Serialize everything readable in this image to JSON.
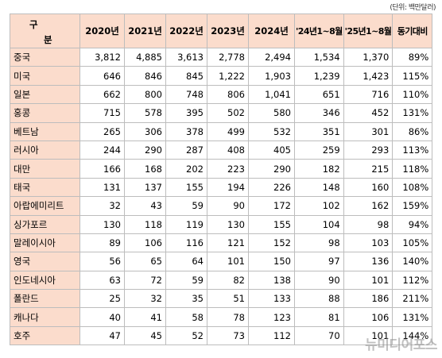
{
  "unit_note": "(단위: 백만달러)",
  "header": {
    "corner_top": "구",
    "corner_bottom": "분",
    "columns": [
      "2020년",
      "2021년",
      "2022년",
      "2023년",
      "2024년",
      "'24년1~8월",
      "'25년1~8월",
      "동기대비"
    ]
  },
  "rows": [
    {
      "country": "중국",
      "values": [
        "3,812",
        "4,885",
        "3,613",
        "2,778",
        "2,494",
        "1,534",
        "1,370",
        "89%"
      ]
    },
    {
      "country": "미국",
      "values": [
        "646",
        "846",
        "845",
        "1,222",
        "1,903",
        "1,239",
        "1,423",
        "115%"
      ]
    },
    {
      "country": "일본",
      "values": [
        "662",
        "800",
        "748",
        "806",
        "1,041",
        "651",
        "716",
        "110%"
      ]
    },
    {
      "country": "홍콩",
      "values": [
        "715",
        "578",
        "395",
        "502",
        "580",
        "346",
        "452",
        "131%"
      ]
    },
    {
      "country": "베트남",
      "values": [
        "265",
        "306",
        "378",
        "499",
        "532",
        "351",
        "301",
        "86%"
      ]
    },
    {
      "country": "러시아",
      "values": [
        "244",
        "290",
        "287",
        "408",
        "405",
        "259",
        "293",
        "113%"
      ]
    },
    {
      "country": "대만",
      "values": [
        "166",
        "168",
        "202",
        "223",
        "290",
        "182",
        "215",
        "118%"
      ]
    },
    {
      "country": "태국",
      "values": [
        "131",
        "137",
        "155",
        "194",
        "226",
        "148",
        "160",
        "108%"
      ]
    },
    {
      "country": "아랍에미리트",
      "values": [
        "32",
        "43",
        "59",
        "90",
        "172",
        "102",
        "162",
        "159%"
      ]
    },
    {
      "country": "싱가포르",
      "values": [
        "130",
        "118",
        "119",
        "130",
        "155",
        "104",
        "98",
        "94%"
      ]
    },
    {
      "country": "말레이시아",
      "values": [
        "89",
        "106",
        "116",
        "121",
        "152",
        "98",
        "103",
        "105%"
      ]
    },
    {
      "country": "영국",
      "values": [
        "56",
        "65",
        "64",
        "101",
        "150",
        "97",
        "136",
        "140%"
      ]
    },
    {
      "country": "인도네시아",
      "values": [
        "63",
        "72",
        "59",
        "82",
        "138",
        "90",
        "101",
        "112%"
      ]
    },
    {
      "country": "폴란드",
      "values": [
        "25",
        "32",
        "35",
        "51",
        "133",
        "88",
        "186",
        "211%"
      ]
    },
    {
      "country": "캐나다",
      "values": [
        "40",
        "41",
        "58",
        "78",
        "123",
        "81",
        "106",
        "131%"
      ]
    },
    {
      "country": "호주",
      "values": [
        "47",
        "45",
        "52",
        "73",
        "112",
        "70",
        "101",
        "144%"
      ]
    }
  ],
  "watermark": "뉴미디어포스"
}
